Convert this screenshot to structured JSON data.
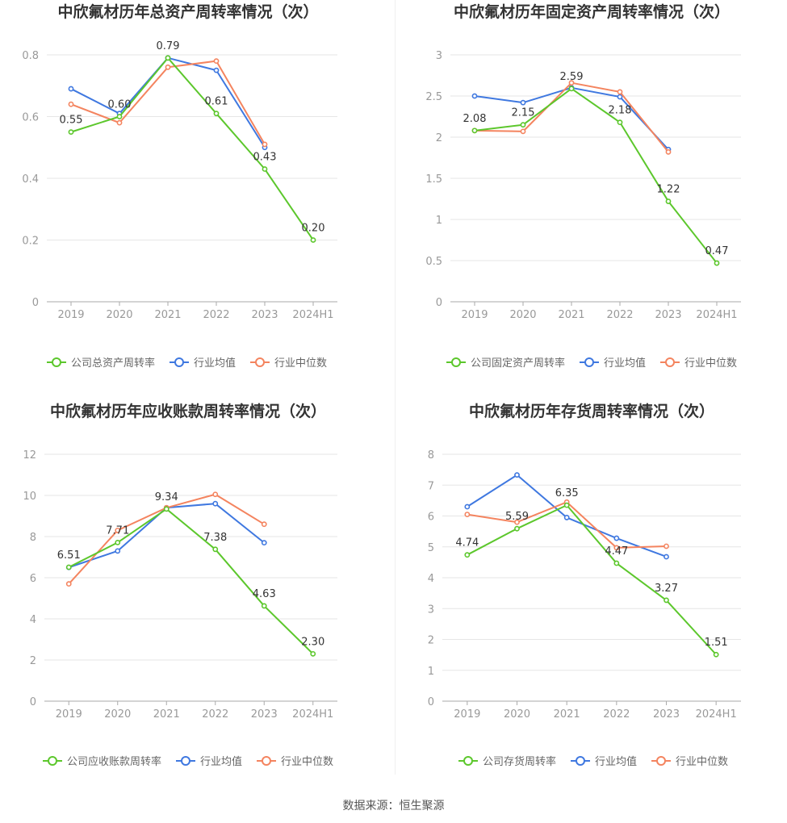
{
  "source_label": "数据来源：恒生聚源",
  "colors": {
    "company": "#5cc72c",
    "average": "#3f78e0",
    "median": "#f4845f",
    "grid": "#e6e6e6",
    "axis": "#999999",
    "label": "#333333",
    "title": "#333333"
  },
  "chart_data": [
    {
      "type": "line",
      "title": "中欣氟材历年总资产周转率情况（次）",
      "categories": [
        "2019",
        "2020",
        "2021",
        "2022",
        "2023",
        "2024H1"
      ],
      "ylim": [
        0,
        0.8
      ],
      "yticks": [
        "0",
        "0.2",
        "0.4",
        "0.6",
        "0.8"
      ],
      "grid": true,
      "legend_position": "bottom",
      "series": [
        {
          "name": "公司总资产周转率",
          "values": [
            0.55,
            0.6,
            0.79,
            0.61,
            0.43,
            0.2
          ],
          "labels": [
            "0.55",
            "0.60",
            "0.79",
            "0.61",
            "0.43",
            "0.20"
          ]
        },
        {
          "name": "行业均值",
          "values": [
            0.69,
            0.61,
            0.79,
            0.75,
            0.5,
            null
          ]
        },
        {
          "name": "行业中位数",
          "values": [
            0.64,
            0.58,
            0.76,
            0.78,
            0.51,
            null
          ]
        }
      ]
    },
    {
      "type": "line",
      "title": "中欣氟材历年固定资产周转率情况（次）",
      "categories": [
        "2019",
        "2020",
        "2021",
        "2022",
        "2023",
        "2024H1"
      ],
      "ylim": [
        0,
        3
      ],
      "yticks": [
        "0",
        "0.5",
        "1",
        "1.5",
        "2",
        "2.5",
        "3"
      ],
      "grid": true,
      "legend_position": "bottom",
      "series": [
        {
          "name": "公司固定资产周转率",
          "values": [
            2.08,
            2.15,
            2.59,
            2.18,
            1.22,
            0.47
          ],
          "labels": [
            "2.08",
            "2.15",
            "2.59",
            "2.18",
            "1.22",
            "0.47"
          ]
        },
        {
          "name": "行业均值",
          "values": [
            2.5,
            2.42,
            2.6,
            2.49,
            1.85,
            null
          ]
        },
        {
          "name": "行业中位数",
          "values": [
            2.08,
            2.07,
            2.66,
            2.55,
            1.82,
            null
          ]
        }
      ]
    },
    {
      "type": "line",
      "title": "中欣氟材历年应收账款周转率情况（次）",
      "categories": [
        "2019",
        "2020",
        "2021",
        "2022",
        "2023",
        "2024H1"
      ],
      "ylim": [
        0,
        12
      ],
      "yticks": [
        "0",
        "2",
        "4",
        "6",
        "8",
        "10",
        "12"
      ],
      "grid": true,
      "legend_position": "bottom",
      "series": [
        {
          "name": "公司应收账款周转率",
          "values": [
            6.51,
            7.71,
            9.34,
            7.38,
            4.63,
            2.3
          ],
          "labels": [
            "6.51",
            "7.71",
            "9.34",
            "7.38",
            "4.63",
            "2.30"
          ]
        },
        {
          "name": "行业均值",
          "values": [
            6.5,
            7.3,
            9.4,
            9.6,
            7.7,
            null
          ]
        },
        {
          "name": "行业中位数",
          "values": [
            5.7,
            8.3,
            9.4,
            10.05,
            8.6,
            null
          ]
        }
      ]
    },
    {
      "type": "line",
      "title": "中欣氟材历年存货周转率情况（次）",
      "categories": [
        "2019",
        "2020",
        "2021",
        "2022",
        "2023",
        "2024H1"
      ],
      "ylim": [
        0,
        8
      ],
      "yticks": [
        "0",
        "1",
        "2",
        "3",
        "4",
        "5",
        "6",
        "7",
        "8"
      ],
      "grid": true,
      "legend_position": "bottom",
      "series": [
        {
          "name": "公司存货周转率",
          "values": [
            4.74,
            5.59,
            6.35,
            4.47,
            3.27,
            1.51
          ],
          "labels": [
            "4.74",
            "5.59",
            "6.35",
            "4.47",
            "3.27",
            "1.51"
          ]
        },
        {
          "name": "行业均值",
          "values": [
            6.3,
            7.33,
            5.95,
            5.28,
            4.68,
            null
          ]
        },
        {
          "name": "行业中位数",
          "values": [
            6.05,
            5.8,
            6.45,
            4.97,
            5.02,
            null
          ]
        }
      ]
    }
  ]
}
